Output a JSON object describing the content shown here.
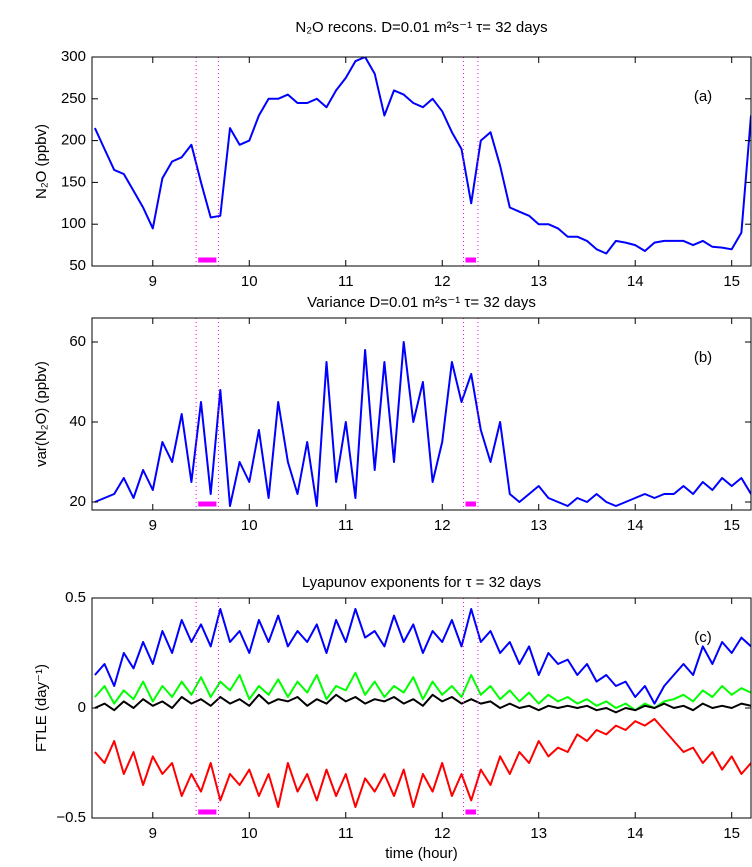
{
  "chart_data": [
    {
      "type": "line",
      "title": "N₂O recons. D=0.01 m²s⁻¹   τ= 32 days",
      "ylabel": "N₂O (ppbv)",
      "annotation": "(a)",
      "x": [
        8.4,
        8.5,
        8.6,
        8.7,
        8.8,
        8.9,
        9.0,
        9.1,
        9.2,
        9.3,
        9.4,
        9.5,
        9.6,
        9.7,
        9.8,
        9.9,
        10.0,
        10.1,
        10.2,
        10.3,
        10.4,
        10.5,
        10.6,
        10.7,
        10.8,
        10.9,
        11.0,
        11.1,
        11.2,
        11.3,
        11.4,
        11.5,
        11.6,
        11.7,
        11.8,
        11.9,
        12.0,
        12.1,
        12.2,
        12.3,
        12.4,
        12.5,
        12.6,
        12.7,
        12.8,
        12.9,
        13.0,
        13.1,
        13.2,
        13.3,
        13.4,
        13.5,
        13.6,
        13.7,
        13.8,
        13.9,
        14.0,
        14.1,
        14.2,
        14.3,
        14.4,
        14.5,
        14.6,
        14.7,
        14.8,
        14.9,
        15.0,
        15.1,
        15.2
      ],
      "series": [
        {
          "color": "#0000ff",
          "values": [
            215,
            190,
            165,
            160,
            140,
            120,
            95,
            155,
            175,
            180,
            195,
            150,
            108,
            110,
            215,
            195,
            200,
            230,
            250,
            250,
            255,
            245,
            245,
            250,
            240,
            260,
            275,
            295,
            300,
            280,
            230,
            260,
            255,
            245,
            240,
            250,
            235,
            210,
            190,
            125,
            200,
            210,
            170,
            120,
            115,
            110,
            100,
            100,
            95,
            85,
            85,
            80,
            70,
            65,
            80,
            78,
            75,
            68,
            78,
            80,
            80,
            80,
            75,
            80,
            73,
            72,
            70,
            90,
            230
          ]
        }
      ],
      "xlim": [
        8.37,
        15.2
      ],
      "xticks": [
        9,
        10,
        11,
        12,
        13,
        14,
        15
      ],
      "ylim": [
        50,
        300
      ],
      "yticks": [
        50,
        100,
        150,
        200,
        250,
        300
      ],
      "highlight_color": "#ff00ff",
      "highlight_intervals": [
        [
          9.45,
          9.68
        ],
        [
          12.22,
          12.37
        ]
      ]
    },
    {
      "type": "line",
      "title": "Variance  D=0.01 m²s⁻¹   τ= 32 days",
      "ylabel": "var(N₂O) (ppbv)",
      "annotation": "(b)",
      "x": [
        8.4,
        8.5,
        8.6,
        8.7,
        8.8,
        8.9,
        9.0,
        9.1,
        9.2,
        9.3,
        9.4,
        9.5,
        9.6,
        9.7,
        9.8,
        9.9,
        10.0,
        10.1,
        10.2,
        10.3,
        10.4,
        10.5,
        10.6,
        10.7,
        10.8,
        10.9,
        11.0,
        11.1,
        11.2,
        11.3,
        11.4,
        11.5,
        11.6,
        11.7,
        11.8,
        11.9,
        12.0,
        12.1,
        12.2,
        12.3,
        12.4,
        12.5,
        12.6,
        12.7,
        12.8,
        12.9,
        13.0,
        13.1,
        13.2,
        13.3,
        13.4,
        13.5,
        13.6,
        13.7,
        13.8,
        13.9,
        14.0,
        14.1,
        14.2,
        14.3,
        14.4,
        14.5,
        14.6,
        14.7,
        14.8,
        14.9,
        15.0,
        15.1,
        15.2
      ],
      "series": [
        {
          "color": "#0000ff",
          "values": [
            20,
            21,
            22,
            26,
            21,
            28,
            23,
            35,
            30,
            42,
            25,
            45,
            22,
            48,
            19,
            30,
            25,
            38,
            21,
            45,
            30,
            22,
            35,
            19,
            55,
            25,
            40,
            21,
            58,
            28,
            55,
            30,
            60,
            40,
            50,
            25,
            35,
            55,
            45,
            52,
            38,
            30,
            40,
            22,
            20,
            22,
            24,
            21,
            20,
            19,
            21,
            20,
            22,
            20,
            19,
            20,
            21,
            22,
            21,
            22,
            22,
            24,
            22,
            25,
            23,
            26,
            24,
            26,
            22
          ]
        }
      ],
      "xlim": [
        8.37,
        15.2
      ],
      "xticks": [
        9,
        10,
        11,
        12,
        13,
        14,
        15
      ],
      "ylim": [
        18,
        66
      ],
      "yticks": [
        20,
        40,
        60
      ],
      "highlight_color": "#ff00ff",
      "highlight_intervals": [
        [
          9.45,
          9.68
        ],
        [
          12.22,
          12.37
        ]
      ]
    },
    {
      "type": "line",
      "title": "Lyapunov exponents for τ = 32 days",
      "ylabel": "FTLE (day⁻¹)",
      "xlabel": "time (hour)",
      "annotation": "(c)",
      "x": [
        8.4,
        8.5,
        8.6,
        8.7,
        8.8,
        8.9,
        9.0,
        9.1,
        9.2,
        9.3,
        9.4,
        9.5,
        9.6,
        9.7,
        9.8,
        9.9,
        10.0,
        10.1,
        10.2,
        10.3,
        10.4,
        10.5,
        10.6,
        10.7,
        10.8,
        10.9,
        11.0,
        11.1,
        11.2,
        11.3,
        11.4,
        11.5,
        11.6,
        11.7,
        11.8,
        11.9,
        12.0,
        12.1,
        12.2,
        12.3,
        12.4,
        12.5,
        12.6,
        12.7,
        12.8,
        12.9,
        13.0,
        13.1,
        13.2,
        13.3,
        13.4,
        13.5,
        13.6,
        13.7,
        13.8,
        13.9,
        14.0,
        14.1,
        14.2,
        14.3,
        14.4,
        14.5,
        14.6,
        14.7,
        14.8,
        14.9,
        15.0,
        15.1,
        15.2
      ],
      "series": [
        {
          "color": "#0000ff",
          "values": [
            0.15,
            0.2,
            0.1,
            0.25,
            0.18,
            0.3,
            0.2,
            0.35,
            0.25,
            0.4,
            0.3,
            0.38,
            0.28,
            0.45,
            0.3,
            0.35,
            0.25,
            0.4,
            0.3,
            0.42,
            0.28,
            0.35,
            0.3,
            0.38,
            0.25,
            0.4,
            0.3,
            0.45,
            0.32,
            0.35,
            0.28,
            0.42,
            0.3,
            0.38,
            0.25,
            0.35,
            0.3,
            0.4,
            0.28,
            0.45,
            0.3,
            0.35,
            0.25,
            0.3,
            0.2,
            0.28,
            0.15,
            0.25,
            0.2,
            0.22,
            0.15,
            0.2,
            0.12,
            0.15,
            0.1,
            0.12,
            0.05,
            0.1,
            0.02,
            0.1,
            0.15,
            0.2,
            0.15,
            0.28,
            0.2,
            0.3,
            0.25,
            0.32,
            0.28
          ]
        },
        {
          "color": "#00ff00",
          "values": [
            0.05,
            0.1,
            0.02,
            0.08,
            0.04,
            0.12,
            0.03,
            0.1,
            0.05,
            0.12,
            0.06,
            0.14,
            0.05,
            0.12,
            0.08,
            0.15,
            0.04,
            0.1,
            0.06,
            0.13,
            0.05,
            0.12,
            0.07,
            0.15,
            0.04,
            0.1,
            0.08,
            0.16,
            0.06,
            0.12,
            0.05,
            0.1,
            0.07,
            0.14,
            0.04,
            0.12,
            0.06,
            0.1,
            0.05,
            0.15,
            0.06,
            0.1,
            0.04,
            0.08,
            0.03,
            0.07,
            0.02,
            0.06,
            0.03,
            0.05,
            0.02,
            0.04,
            0.01,
            0.03,
            0.0,
            0.02,
            -0.01,
            0.02,
            0.0,
            0.03,
            0.04,
            0.06,
            0.03,
            0.08,
            0.05,
            0.1,
            0.06,
            0.09,
            0.07
          ]
        },
        {
          "color": "#ff0000",
          "values": [
            -0.2,
            -0.25,
            -0.15,
            -0.3,
            -0.2,
            -0.35,
            -0.22,
            -0.3,
            -0.25,
            -0.4,
            -0.3,
            -0.38,
            -0.25,
            -0.42,
            -0.3,
            -0.35,
            -0.28,
            -0.4,
            -0.3,
            -0.45,
            -0.25,
            -0.38,
            -0.3,
            -0.42,
            -0.28,
            -0.4,
            -0.3,
            -0.45,
            -0.32,
            -0.38,
            -0.3,
            -0.4,
            -0.28,
            -0.45,
            -0.3,
            -0.38,
            -0.25,
            -0.4,
            -0.3,
            -0.42,
            -0.28,
            -0.35,
            -0.22,
            -0.3,
            -0.2,
            -0.25,
            -0.15,
            -0.22,
            -0.18,
            -0.2,
            -0.12,
            -0.15,
            -0.1,
            -0.12,
            -0.08,
            -0.1,
            -0.06,
            -0.08,
            -0.05,
            -0.1,
            -0.15,
            -0.2,
            -0.18,
            -0.25,
            -0.2,
            -0.28,
            -0.22,
            -0.3,
            -0.25
          ]
        },
        {
          "color": "#000000",
          "values": [
            0.0,
            0.02,
            -0.01,
            0.03,
            0.0,
            0.04,
            0.01,
            0.03,
            0.0,
            0.05,
            0.02,
            0.04,
            0.01,
            0.05,
            0.02,
            0.04,
            0.01,
            0.06,
            0.02,
            0.04,
            0.03,
            0.05,
            0.01,
            0.04,
            0.02,
            0.06,
            0.03,
            0.05,
            0.02,
            0.04,
            0.03,
            0.05,
            0.02,
            0.04,
            0.01,
            0.06,
            0.03,
            0.05,
            0.02,
            0.04,
            0.02,
            0.03,
            0.0,
            0.02,
            0.0,
            0.01,
            -0.01,
            0.01,
            0.0,
            0.01,
            0.0,
            0.01,
            -0.01,
            0.0,
            -0.02,
            0.0,
            -0.01,
            0.01,
            0.0,
            0.02,
            0.0,
            0.01,
            -0.01,
            0.02,
            0.0,
            0.01,
            0.0,
            0.02,
            0.01
          ]
        }
      ],
      "xlim": [
        8.37,
        15.2
      ],
      "xticks": [
        9,
        10,
        11,
        12,
        13,
        14,
        15
      ],
      "ylim": [
        -0.5,
        0.5
      ],
      "yticks": [
        {
          "value": -0.5,
          "label": "−0.5"
        },
        0,
        0.5
      ],
      "highlight_color": "#ff00ff",
      "highlight_intervals": [
        [
          9.45,
          9.68
        ],
        [
          12.22,
          12.37
        ]
      ]
    }
  ]
}
